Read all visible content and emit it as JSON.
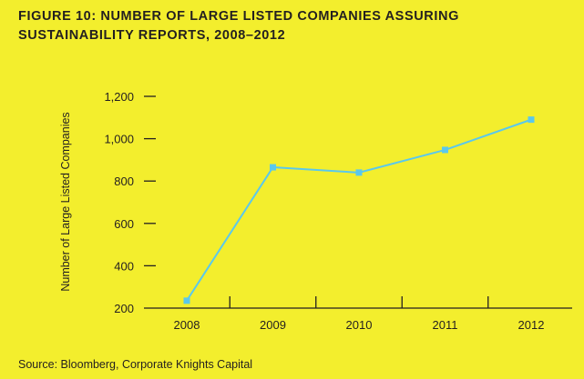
{
  "title_lines": [
    "FIGURE 10: NUMBER OF LARGE LISTED COMPANIES ASSURING",
    "SUSTAINABILITY REPORTS, 2008–2012"
  ],
  "source": "Source: Bloomberg, Corporate Knights Capital",
  "colors": {
    "background": "#f3ee2d",
    "line": "#5bc8ec",
    "axis": "#231f20"
  },
  "chart_data": {
    "type": "line",
    "title": "FIGURE 10: NUMBER OF LARGE LISTED COMPANIES ASSURING SUSTAINABILITY REPORTS, 2008–2012",
    "xlabel": "",
    "ylabel": "Number of Large Listed Companies",
    "categories": [
      "2008",
      "2009",
      "2010",
      "2011",
      "2012"
    ],
    "series": [
      {
        "values": [
          235,
          865,
          840,
          947,
          1090
        ]
      }
    ],
    "ylim": [
      200,
      1200
    ],
    "yticks": [
      200,
      400,
      600,
      800,
      1000,
      1200
    ],
    "ytick_labels": [
      "200",
      "400",
      "600",
      "800",
      "1,000",
      "1,200"
    ],
    "grid": false,
    "legend": "none"
  }
}
